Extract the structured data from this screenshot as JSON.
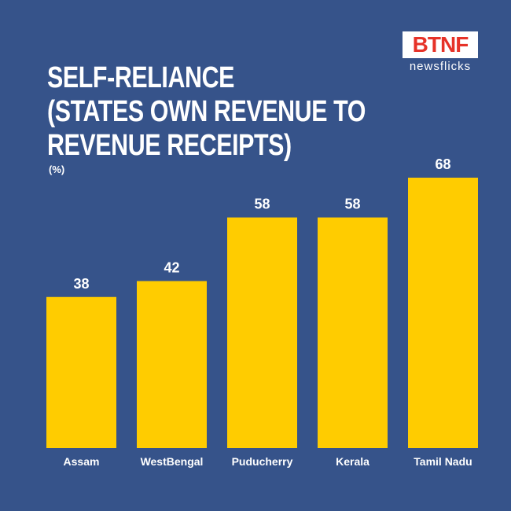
{
  "title_lines": [
    "SELF-RELIANCE",
    "(STATES OWN REVENUE TO",
    "REVENUE RECEIPTS)"
  ],
  "unit_label": "(%)",
  "logo": {
    "badge": "BTNF",
    "text": "newsflicks"
  },
  "colors": {
    "background": "#36538a",
    "bar": "#ffcc00",
    "text": "#ffffff",
    "logo_red": "#e63228"
  },
  "chart_data": {
    "type": "bar",
    "categories": [
      "Assam",
      "WestBengal",
      "Puducherry",
      "Kerala",
      "Tamil Nadu"
    ],
    "values": [
      38,
      42,
      58,
      58,
      68
    ],
    "ylim": [
      0,
      68
    ]
  }
}
